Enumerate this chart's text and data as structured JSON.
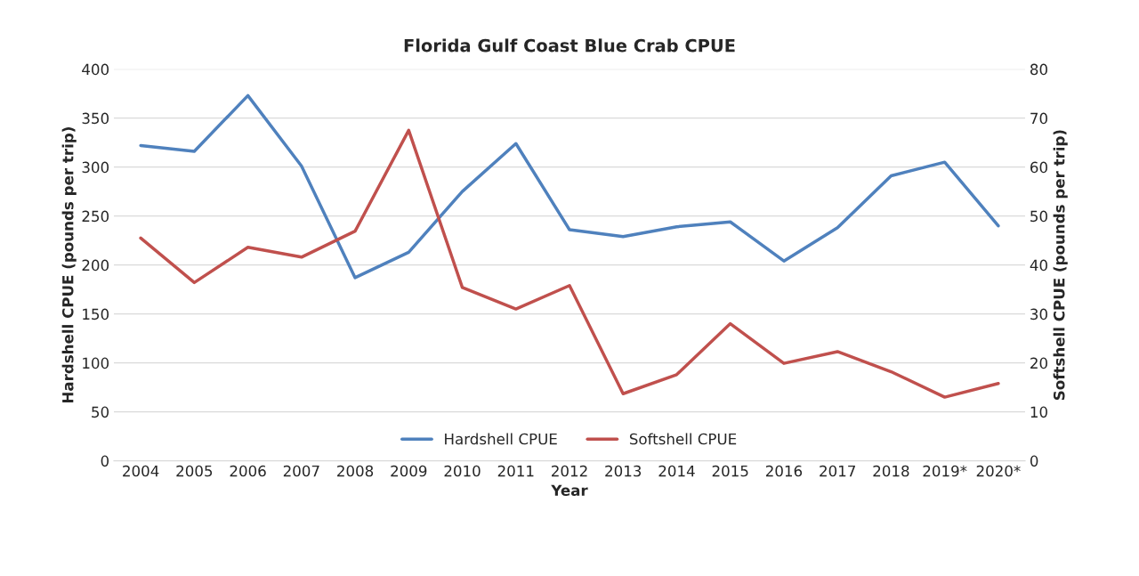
{
  "chart_data": {
    "type": "line",
    "title": "Florida Gulf Coast Blue Crab CPUE",
    "xlabel": "Year",
    "ylabel": "Hardshell CPUE (pounds per trip)",
    "y2label": "Softshell CPUE (pounds per trip)",
    "categories": [
      "2004",
      "2005",
      "2006",
      "2007",
      "2008",
      "2009",
      "2010",
      "2011",
      "2012",
      "2013",
      "2014",
      "2015",
      "2016",
      "2017",
      "2018",
      "2019*",
      "2020*"
    ],
    "series": [
      {
        "name": "Hardshell CPUE",
        "color": "#4f81bd",
        "values": [
          322,
          316,
          373,
          301,
          187,
          213,
          275,
          324,
          236,
          229,
          239,
          244,
          204,
          238,
          291,
          305,
          240
        ]
      },
      {
        "name": "Softshell CPUE",
        "color": "#c0504d",
        "axis": "y2",
        "values": [
          45.5,
          36.4,
          43.6,
          41.6,
          46.9,
          67.5,
          35.4,
          31.0,
          35.8,
          13.7,
          17.6,
          28.0,
          19.9,
          22.3,
          18.2,
          13.0,
          15.8
        ]
      }
    ],
    "ylim": [
      0,
      400
    ],
    "yticks": [
      0,
      50,
      100,
      150,
      200,
      250,
      300,
      350,
      400
    ],
    "y2lim": [
      0,
      80
    ],
    "y2ticks": [
      0,
      10,
      20,
      30,
      40,
      50,
      60,
      70,
      80
    ],
    "grid": "y",
    "legend": "bottom",
    "marker": "none",
    "line_style": "solid"
  }
}
